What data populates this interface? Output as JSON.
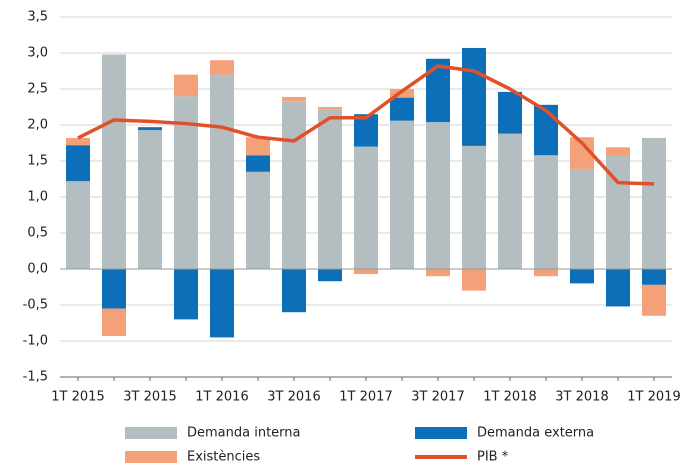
{
  "chart_data": {
    "type": "bar",
    "stacked": true,
    "categories": [
      "1T 2015",
      null,
      "3T 2015",
      null,
      "1T 2016",
      null,
      "3T 2016",
      null,
      "1T 2017",
      null,
      "3T 2017",
      null,
      "1T 2018",
      null,
      "3T 2018",
      null,
      "1T 2019"
    ],
    "series": [
      {
        "name": "Demanda interna",
        "color": "#b4bdbf",
        "values": [
          1.22,
          2.98,
          1.93,
          2.4,
          2.7,
          1.35,
          2.33,
          2.22,
          1.7,
          2.06,
          2.04,
          1.71,
          1.88,
          1.58,
          1.38,
          1.57,
          1.82
        ]
      },
      {
        "name": "Demanda externa",
        "color": "#0d6fb8",
        "values": [
          0.5,
          -0.55,
          0.04,
          -0.7,
          -0.95,
          0.23,
          -0.6,
          -0.17,
          0.45,
          0.32,
          0.88,
          1.36,
          0.58,
          0.7,
          -0.2,
          -0.52,
          -0.22
        ]
      },
      {
        "name": "Existències",
        "color": "#f4a079",
        "values": [
          0.1,
          -0.38,
          0,
          0.3,
          0.2,
          0.25,
          0.06,
          0.03,
          -0.07,
          0.12,
          -0.1,
          -0.3,
          0,
          -0.1,
          0.45,
          0.12,
          -0.43
        ]
      },
      {
        "name": "PIB *",
        "color": "#e2502a",
        "type": "line",
        "values": [
          1.82,
          2.07,
          2.05,
          2.02,
          1.97,
          1.83,
          1.78,
          2.1,
          2.1,
          2.47,
          2.82,
          2.75,
          2.5,
          2.2,
          1.75,
          1.2,
          1.18
        ]
      }
    ],
    "ylim": [
      -1.5,
      3.5
    ],
    "yticks": [
      {
        "value": -1.5,
        "label": "-1,5"
      },
      {
        "value": -1,
        "label": "-1,0"
      },
      {
        "value": -0.5,
        "label": "-0,5"
      },
      {
        "value": 0,
        "label": "0,0"
      },
      {
        "value": 0.5,
        "label": "0,5"
      },
      {
        "value": 1,
        "label": "1,0"
      },
      {
        "value": 1.5,
        "label": "1,5"
      },
      {
        "value": 2,
        "label": "2,0"
      },
      {
        "value": 2.5,
        "label": "2,5"
      },
      {
        "value": 3,
        "label": "3,0"
      },
      {
        "value": 3.5,
        "label": "3,5"
      }
    ],
    "grid": true
  }
}
